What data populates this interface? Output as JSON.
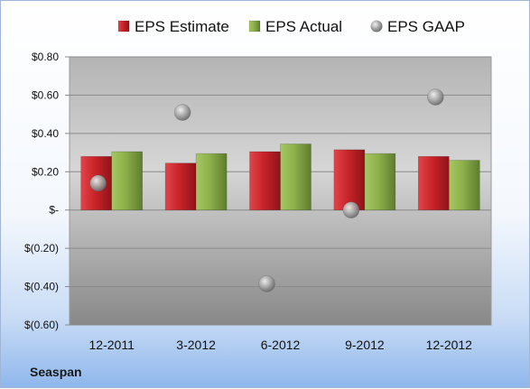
{
  "chart_data": {
    "type": "bar",
    "title": "",
    "xlabel": "",
    "ylabel": "",
    "categories": [
      "12-2011",
      "3-2012",
      "6-2012",
      "9-2012",
      "12-2012"
    ],
    "series": [
      {
        "name": "EPS Estimate",
        "kind": "bar",
        "color": "#c8242a",
        "values": [
          0.28,
          0.245,
          0.305,
          0.315,
          0.28
        ]
      },
      {
        "name": "EPS Actual",
        "kind": "bar",
        "color": "#8cb04a",
        "values": [
          0.305,
          0.295,
          0.345,
          0.295,
          0.26
        ]
      },
      {
        "name": "EPS GAAP",
        "kind": "scatter",
        "color": "#a8a8a8",
        "values": [
          0.14,
          0.51,
          -0.385,
          0.0,
          0.59
        ]
      }
    ],
    "ylim": [
      -0.6,
      0.8
    ],
    "yticks": [
      0.8,
      0.6,
      0.4,
      0.2,
      0.0,
      -0.2,
      -0.4,
      -0.6
    ],
    "ytick_labels": [
      "$0.80",
      "$0.60",
      "$0.40",
      "$0.20",
      "$-",
      "$(0.20)",
      "$(0.40)",
      "$(0.60)"
    ],
    "grid": true,
    "legend_position": "top"
  },
  "footer": {
    "company": "Seaspan"
  }
}
